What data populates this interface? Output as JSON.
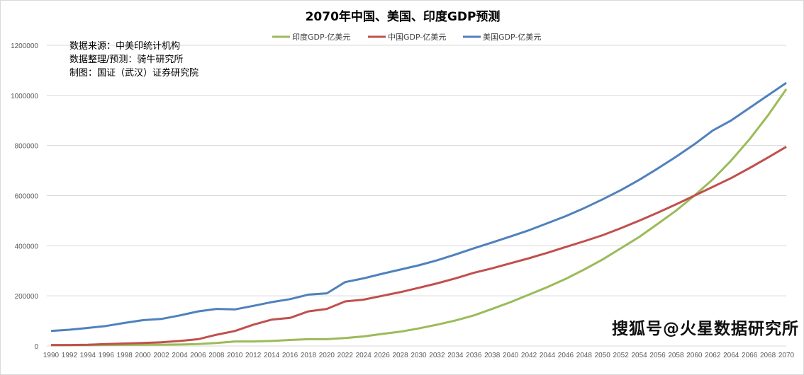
{
  "chart_data": {
    "type": "line",
    "title": "2070年中国、美国、印度GDP预测",
    "xlabel": "",
    "ylabel": "",
    "ylim": [
      0,
      1200000
    ],
    "yticks": [
      0,
      200000,
      400000,
      600000,
      800000,
      1000000,
      1200000
    ],
    "x": [
      1990,
      1992,
      1994,
      1996,
      1998,
      2000,
      2002,
      2004,
      2006,
      2008,
      2010,
      2012,
      2014,
      2016,
      2018,
      2020,
      2022,
      2024,
      2026,
      2028,
      2030,
      2032,
      2034,
      2036,
      2038,
      2040,
      2042,
      2044,
      2046,
      2048,
      2050,
      2052,
      2054,
      2056,
      2058,
      2060,
      2062,
      2064,
      2066,
      2068,
      2070
    ],
    "legend_position": "top-center",
    "grid": true,
    "series": [
      {
        "name": "印度GDP-亿美元",
        "color": "#9bbb59",
        "values": [
          3000,
          3000,
          3500,
          4000,
          4500,
          5000,
          5500,
          6000,
          8000,
          12000,
          18000,
          18000,
          20000,
          24000,
          27000,
          27000,
          32000,
          38000,
          48000,
          57000,
          70000,
          85000,
          102000,
          122000,
          148000,
          175000,
          205000,
          235000,
          268000,
          305000,
          345000,
          390000,
          435000,
          487000,
          540000,
          600000,
          665000,
          740000,
          825000,
          920000,
          1025000
        ]
      },
      {
        "name": "中国GDP-亿美元",
        "color": "#c0504d",
        "values": [
          4000,
          4000,
          5000,
          8000,
          10000,
          12000,
          15000,
          20000,
          27000,
          45000,
          60000,
          85000,
          105000,
          112000,
          138000,
          148000,
          178000,
          185000,
          200000,
          215000,
          232000,
          250000,
          270000,
          292000,
          310000,
          330000,
          350000,
          372000,
          395000,
          418000,
          442000,
          470000,
          500000,
          532000,
          565000,
          600000,
          635000,
          670000,
          710000,
          752000,
          795000
        ]
      },
      {
        "name": "美国GDP-亿美元",
        "color": "#4f81bd",
        "values": [
          60000,
          65000,
          72000,
          80000,
          92000,
          103000,
          108000,
          122000,
          138000,
          148000,
          146000,
          160000,
          175000,
          187000,
          205000,
          210000,
          255000,
          270000,
          288000,
          305000,
          322000,
          342000,
          365000,
          390000,
          413000,
          437000,
          462000,
          490000,
          518000,
          550000,
          585000,
          622000,
          663000,
          708000,
          755000,
          805000,
          860000,
          900000,
          950000,
          1000000,
          1050000
        ]
      }
    ]
  },
  "notes": [
    "数据来源：中美印统计机构",
    "数据整理/预测：骑牛研究所",
    "制图：国证（武汉）证券研究院"
  ],
  "watermark": "搜狐号@火星数据研究所"
}
